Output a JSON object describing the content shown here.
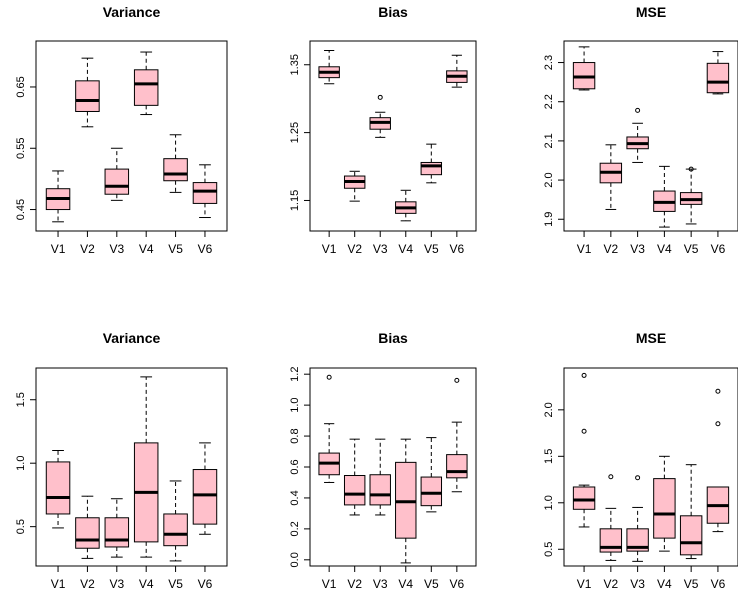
{
  "box_fill": "#ffc0cb",
  "chart_data": [
    {
      "type": "boxplot",
      "title": "Variance",
      "categories": [
        "V1",
        "V2",
        "V3",
        "V4",
        "V5",
        "V6"
      ],
      "ylim": [
        0.415,
        0.725
      ],
      "yticks": [
        0.45,
        0.55,
        0.65
      ],
      "ytick_labels": [
        "0.45",
        "0.55",
        "0.65"
      ],
      "boxes": [
        {
          "min": 0.43,
          "q1": 0.45,
          "median": 0.468,
          "q3": 0.484,
          "max": 0.513,
          "outliers": []
        },
        {
          "min": 0.585,
          "q1": 0.61,
          "median": 0.628,
          "q3": 0.66,
          "max": 0.697,
          "outliers": []
        },
        {
          "min": 0.465,
          "q1": 0.475,
          "median": 0.488,
          "q3": 0.516,
          "max": 0.55,
          "outliers": []
        },
        {
          "min": 0.605,
          "q1": 0.62,
          "median": 0.655,
          "q3": 0.678,
          "max": 0.707,
          "outliers": []
        },
        {
          "min": 0.478,
          "q1": 0.497,
          "median": 0.508,
          "q3": 0.533,
          "max": 0.572,
          "outliers": []
        },
        {
          "min": 0.437,
          "q1": 0.46,
          "median": 0.48,
          "q3": 0.494,
          "max": 0.523,
          "outliers": []
        }
      ]
    },
    {
      "type": "boxplot",
      "title": "Bias",
      "categories": [
        "V1",
        "V2",
        "V3",
        "V4",
        "V5",
        "V6"
      ],
      "ylim": [
        1.105,
        1.385
      ],
      "yticks": [
        1.15,
        1.25,
        1.35
      ],
      "ytick_labels": [
        "1.15",
        "1.25",
        "1.35"
      ],
      "boxes": [
        {
          "min": 1.322,
          "q1": 1.331,
          "median": 1.339,
          "q3": 1.347,
          "max": 1.371,
          "outliers": []
        },
        {
          "min": 1.149,
          "q1": 1.168,
          "median": 1.178,
          "q3": 1.186,
          "max": 1.193,
          "outliers": []
        },
        {
          "min": 1.243,
          "q1": 1.255,
          "median": 1.265,
          "q3": 1.272,
          "max": 1.28,
          "outliers": [
            1.302
          ]
        },
        {
          "min": 1.12,
          "q1": 1.131,
          "median": 1.139,
          "q3": 1.148,
          "max": 1.165,
          "outliers": []
        },
        {
          "min": 1.176,
          "q1": 1.188,
          "median": 1.201,
          "q3": 1.206,
          "max": 1.233,
          "outliers": []
        },
        {
          "min": 1.317,
          "q1": 1.324,
          "median": 1.333,
          "q3": 1.341,
          "max": 1.364,
          "outliers": []
        }
      ]
    },
    {
      "type": "boxplot",
      "title": "MSE",
      "categories": [
        "V1",
        "V2",
        "V3",
        "V4",
        "V5",
        "V6"
      ],
      "ylim": [
        1.87,
        2.355
      ],
      "yticks": [
        1.9,
        2.0,
        2.1,
        2.2,
        2.3
      ],
      "ytick_labels": [
        "1.9",
        "2.0",
        "2.1",
        "2.2",
        "2.3"
      ],
      "boxes": [
        {
          "min": 2.23,
          "q1": 2.233,
          "median": 2.263,
          "q3": 2.3,
          "max": 2.34,
          "outliers": []
        },
        {
          "min": 1.925,
          "q1": 1.993,
          "median": 2.02,
          "q3": 2.043,
          "max": 2.09,
          "outliers": []
        },
        {
          "min": 2.045,
          "q1": 2.08,
          "median": 2.093,
          "q3": 2.11,
          "max": 2.145,
          "outliers": [
            2.178
          ]
        },
        {
          "min": 1.88,
          "q1": 1.92,
          "median": 1.943,
          "q3": 1.972,
          "max": 2.035,
          "outliers": []
        },
        {
          "min": 1.888,
          "q1": 1.938,
          "median": 1.95,
          "q3": 1.968,
          "max": 2.028,
          "outliers": [
            2.028
          ]
        },
        {
          "min": 2.22,
          "q1": 2.223,
          "median": 2.25,
          "q3": 2.298,
          "max": 2.328,
          "outliers": []
        }
      ]
    },
    {
      "type": "boxplot",
      "title": "Variance",
      "categories": [
        "V1",
        "V2",
        "V3",
        "V4",
        "V5",
        "V6"
      ],
      "ylim": [
        0.19,
        1.75
      ],
      "yticks": [
        0.5,
        1.0,
        1.5
      ],
      "ytick_labels": [
        "0.5",
        "1.0",
        "1.5"
      ],
      "boxes": [
        {
          "min": 0.49,
          "q1": 0.6,
          "median": 0.73,
          "q3": 1.01,
          "max": 1.1,
          "outliers": []
        },
        {
          "min": 0.25,
          "q1": 0.33,
          "median": 0.395,
          "q3": 0.57,
          "max": 0.74,
          "outliers": []
        },
        {
          "min": 0.26,
          "q1": 0.34,
          "median": 0.395,
          "q3": 0.57,
          "max": 0.72,
          "outliers": []
        },
        {
          "min": 0.26,
          "q1": 0.38,
          "median": 0.77,
          "q3": 1.16,
          "max": 1.68,
          "outliers": []
        },
        {
          "min": 0.23,
          "q1": 0.35,
          "median": 0.44,
          "q3": 0.6,
          "max": 0.86,
          "outliers": []
        },
        {
          "min": 0.44,
          "q1": 0.52,
          "median": 0.75,
          "q3": 0.95,
          "max": 1.16,
          "outliers": []
        }
      ]
    },
    {
      "type": "boxplot",
      "title": "Bias",
      "categories": [
        "V1",
        "V2",
        "V3",
        "V4",
        "V5",
        "V6"
      ],
      "ylim": [
        -0.04,
        1.24
      ],
      "yticks": [
        0.0,
        0.2,
        0.4,
        0.6,
        0.8,
        1.0,
        1.2
      ],
      "ytick_labels": [
        "0.0",
        "0.2",
        "0.4",
        "0.6",
        "0.8",
        "1.0",
        "1.2"
      ],
      "boxes": [
        {
          "min": 0.5,
          "q1": 0.55,
          "median": 0.625,
          "q3": 0.69,
          "max": 0.88,
          "outliers": [
            1.18
          ]
        },
        {
          "min": 0.29,
          "q1": 0.355,
          "median": 0.425,
          "q3": 0.545,
          "max": 0.78,
          "outliers": []
        },
        {
          "min": 0.29,
          "q1": 0.355,
          "median": 0.42,
          "q3": 0.55,
          "max": 0.78,
          "outliers": []
        },
        {
          "min": -0.02,
          "q1": 0.14,
          "median": 0.375,
          "q3": 0.63,
          "max": 0.78,
          "outliers": []
        },
        {
          "min": 0.31,
          "q1": 0.35,
          "median": 0.43,
          "q3": 0.535,
          "max": 0.79,
          "outliers": []
        },
        {
          "min": 0.44,
          "q1": 0.53,
          "median": 0.57,
          "q3": 0.68,
          "max": 0.89,
          "outliers": [
            1.16
          ]
        }
      ]
    },
    {
      "type": "boxplot",
      "title": "MSE",
      "categories": [
        "V1",
        "V2",
        "V3",
        "V4",
        "V5",
        "V6"
      ],
      "ylim": [
        0.32,
        2.45
      ],
      "yticks": [
        0.5,
        1.0,
        1.5,
        2.0
      ],
      "ytick_labels": [
        "0.5",
        "1.0",
        "1.5",
        "2.0"
      ],
      "boxes": [
        {
          "min": 0.74,
          "q1": 0.93,
          "median": 1.03,
          "q3": 1.17,
          "max": 1.19,
          "outliers": [
            1.77,
            2.37
          ]
        },
        {
          "min": 0.38,
          "q1": 0.47,
          "median": 0.52,
          "q3": 0.72,
          "max": 0.94,
          "outliers": [
            1.28
          ]
        },
        {
          "min": 0.37,
          "q1": 0.48,
          "median": 0.52,
          "q3": 0.72,
          "max": 0.95,
          "outliers": [
            1.27
          ]
        },
        {
          "min": 0.48,
          "q1": 0.62,
          "median": 0.88,
          "q3": 1.26,
          "max": 1.5,
          "outliers": []
        },
        {
          "min": 0.4,
          "q1": 0.44,
          "median": 0.57,
          "q3": 0.86,
          "max": 1.41,
          "outliers": []
        },
        {
          "min": 0.69,
          "q1": 0.78,
          "median": 0.97,
          "q3": 1.17,
          "max": 1.17,
          "outliers": [
            1.85,
            2.2
          ]
        }
      ]
    }
  ]
}
